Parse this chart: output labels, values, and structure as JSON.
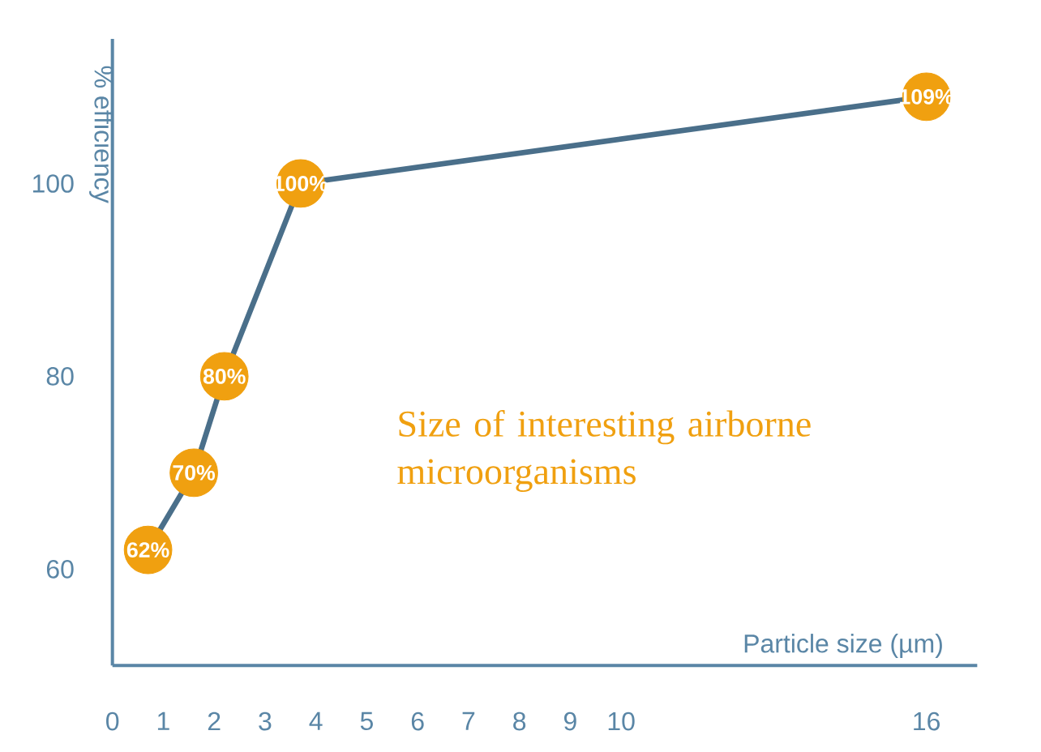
{
  "chart_data": {
    "type": "line",
    "xlabel": "Particle size (µm)",
    "ylabel": "% efficiency",
    "x": [
      0.7,
      1.6,
      2.2,
      3.7,
      16
    ],
    "series": [
      {
        "color": "#4a6f8a",
        "colors": [
          "#f0a010",
          "#f0a010",
          "#f0a010",
          "#f0a010",
          "#f0a010"
        ],
        "values": [
          62,
          70,
          80,
          100,
          109
        ],
        "value_labels": [
          "62%",
          "70%",
          "80%",
          "100%",
          "109%"
        ]
      }
    ],
    "marker": "circle",
    "xlim": [
      0,
      17
    ],
    "xticks": [
      0,
      1,
      2,
      3,
      4,
      5,
      6,
      7,
      8,
      9,
      10,
      16
    ],
    "ylim": [
      50,
      115
    ],
    "yticks": [
      60,
      80,
      100
    ],
    "annotations": [
      "Size of interesting airborne microorganisms"
    ],
    "grid": false
  }
}
